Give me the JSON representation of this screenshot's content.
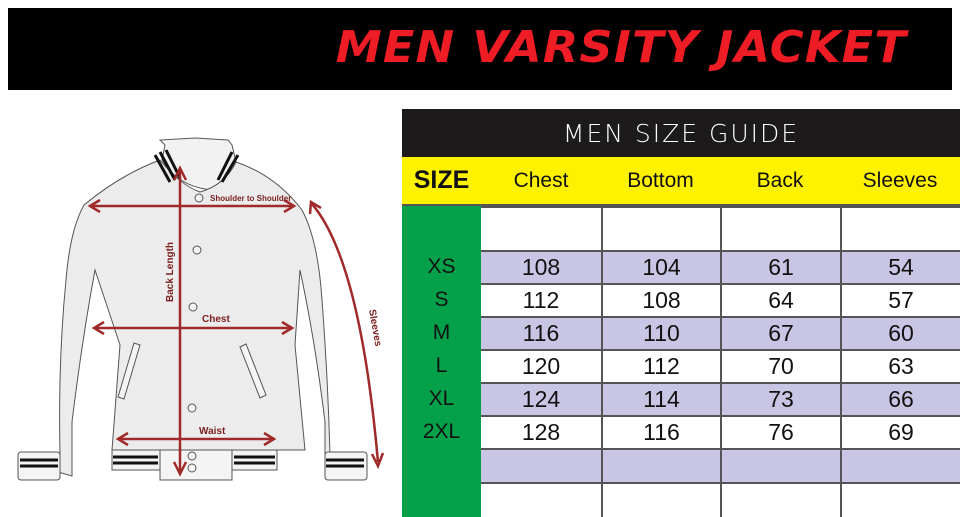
{
  "title": "MEN VARSITY JACKET",
  "diagram": {
    "labels": {
      "shoulder": "Shoulder to Shoulder",
      "back_length": "Back Length",
      "chest": "Chest",
      "waist": "Waist",
      "sleeves": "Sleeves"
    },
    "arrow_color": "#a02a2a"
  },
  "size_guide": {
    "title": "MEN SIZE GUIDE",
    "columns": [
      "SIZE",
      "Chest",
      "Bottom",
      "Back",
      "Sleeves"
    ],
    "rows": [
      {
        "size": "XS",
        "values": [
          "108",
          "104",
          "61",
          "54"
        ]
      },
      {
        "size": "S",
        "values": [
          "112",
          "108",
          "64",
          "57"
        ]
      },
      {
        "size": "M",
        "values": [
          "116",
          "110",
          "67",
          "60"
        ]
      },
      {
        "size": "L",
        "values": [
          "120",
          "112",
          "70",
          "63"
        ]
      },
      {
        "size": "XL",
        "values": [
          "124",
          "114",
          "73",
          "66"
        ]
      },
      {
        "size": "2XL",
        "values": [
          "128",
          "116",
          "76",
          "69"
        ]
      }
    ],
    "colors": {
      "header": "#1c1a1a",
      "columns": "#fff200",
      "size_column": "#04a04a",
      "alt_row": "#c8c6e4",
      "title_red": "#ee1c24"
    }
  }
}
